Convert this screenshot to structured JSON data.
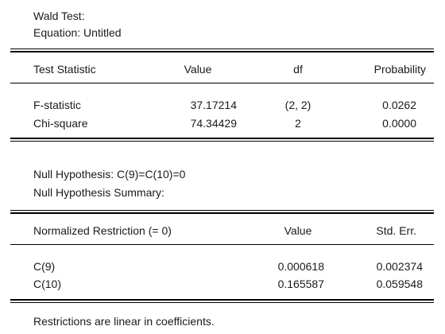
{
  "header": {
    "title": "Wald Test:",
    "equation": "Equation: Untitled"
  },
  "test_table": {
    "columns": [
      "Test Statistic",
      "Value",
      "df",
      "Probability"
    ],
    "rows": [
      [
        "F-statistic",
        "37.17214",
        "(2, 2)",
        "0.0262"
      ],
      [
        "Chi-square",
        "74.34429",
        "2",
        "0.0000"
      ]
    ]
  },
  "hypothesis": {
    "null": "Null Hypothesis: C(9)=C(10)=0",
    "summary": "Null Hypothesis Summary:"
  },
  "restriction_table": {
    "columns": [
      "Normalized Restriction (= 0)",
      "Value",
      "Std. Err."
    ],
    "rows": [
      [
        "C(9)",
        "0.000618",
        "0.002374"
      ],
      [
        "C(10)",
        "0.165587",
        "0.059548"
      ]
    ]
  },
  "footer": {
    "note": "Restrictions are linear in coefficients."
  }
}
